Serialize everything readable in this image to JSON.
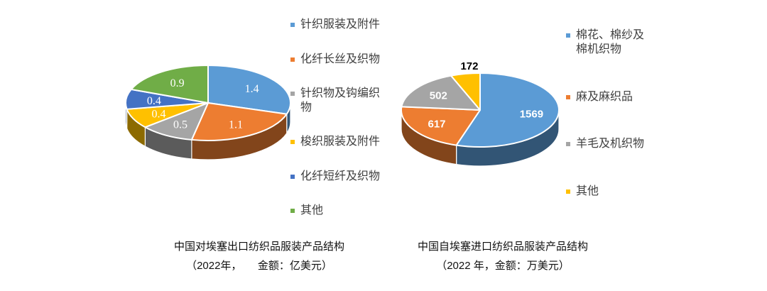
{
  "page": {
    "background": "#ffffff"
  },
  "chart_data": [
    {
      "type": "pie",
      "style": "3d",
      "title": "中国对埃塞出口纺织品服装产品结构",
      "subtitle": "（2022年，　　金额：亿美元）",
      "labels": [
        "针织服装及附件",
        "化纤长丝及织物",
        "针织物及钩编织物",
        "梭织服装及附件",
        "化纤短纤及织物",
        "其他"
      ],
      "values": [
        1.4,
        1.1,
        0.5,
        0.4,
        0.4,
        0.9
      ],
      "colors": [
        "#5B9BD5",
        "#ED7D31",
        "#A5A5A5",
        "#FFC000",
        "#4472C4",
        "#70AD47"
      ],
      "data_labels": [
        "1.4",
        "1.1",
        "0.5",
        "0.4",
        "0.4",
        "0.9"
      ],
      "legend_position": "right",
      "start_angle_deg": 0,
      "direction": "clockwise"
    },
    {
      "type": "pie",
      "style": "3d",
      "title": "中国自埃塞进口纺织品服装产品结构",
      "subtitle": "（2022 年，金额：万美元）",
      "labels": [
        "棉花、棉纱及棉机织物",
        "麻及麻织品",
        "羊毛及机织物",
        "其他"
      ],
      "values": [
        1569,
        617,
        502,
        172
      ],
      "colors": [
        "#5B9BD5",
        "#ED7D31",
        "#A5A5A5",
        "#FFC000"
      ],
      "data_labels": [
        "1569",
        "617",
        "502",
        "172"
      ],
      "legend_position": "right",
      "start_angle_deg": 0,
      "direction": "clockwise"
    }
  ]
}
